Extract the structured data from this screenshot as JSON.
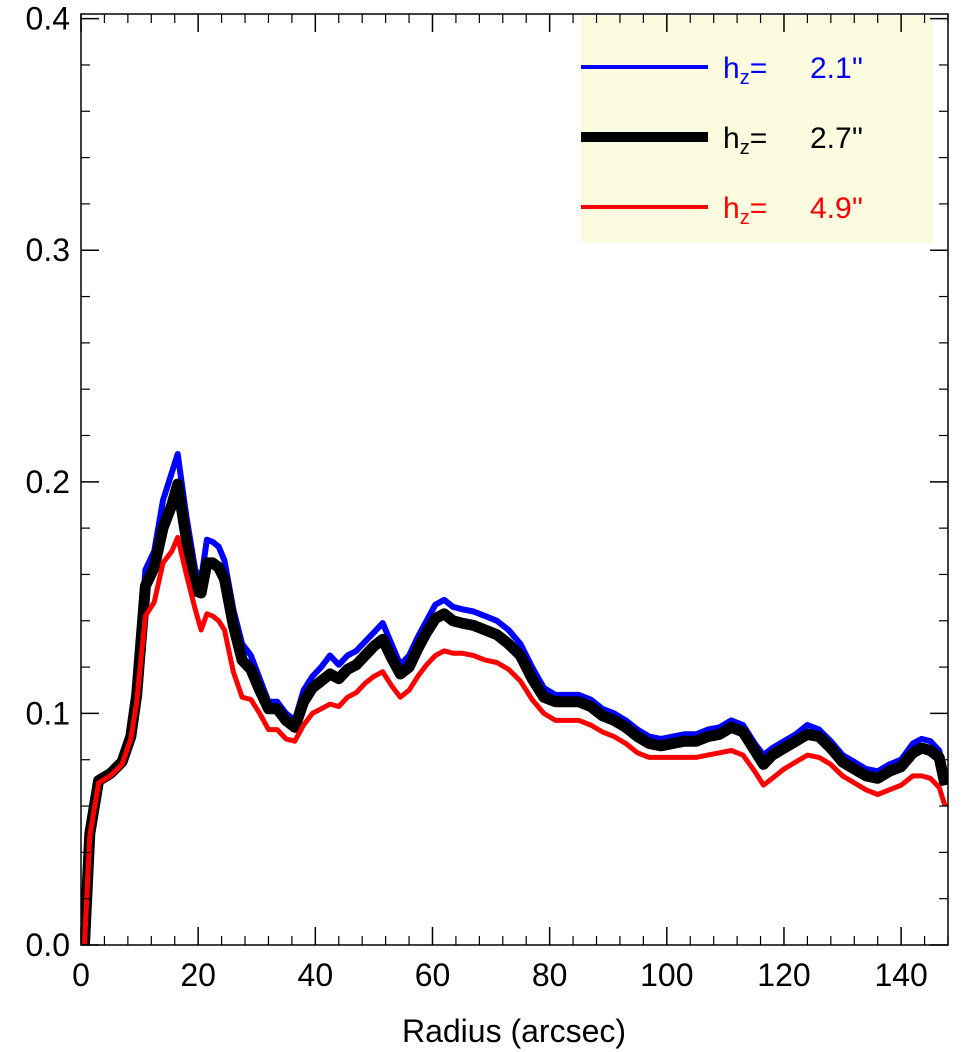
{
  "chart_data": {
    "type": "line",
    "title": "",
    "xlabel": "Radius (arcsec)",
    "ylabel": "",
    "xlim": [
      0,
      148
    ],
    "ylim": [
      0,
      0.402
    ],
    "grid": false,
    "legend_placement": "top-right",
    "legend_background": "#fbfbe0",
    "x_ticks": [
      0,
      20,
      40,
      60,
      80,
      100,
      120,
      140
    ],
    "x_tick_labels": [
      "0",
      "20",
      "40",
      "60",
      "80",
      "100",
      "120",
      "140"
    ],
    "y_ticks": [
      0,
      0.1,
      0.2,
      0.3,
      0.4
    ],
    "y_tick_labels": [
      "0.0",
      "0.1",
      "0.2",
      "0.3",
      "0.4"
    ],
    "x": [
      0.5,
      1.5,
      3,
      5,
      7,
      8.5,
      9.5,
      11,
      12.5,
      14,
      15.5,
      16.5,
      18,
      19.5,
      20.5,
      21.5,
      22.5,
      23.5,
      24.5,
      26,
      27.5,
      29,
      30.5,
      32,
      33.5,
      35,
      36.5,
      38,
      39.5,
      41,
      42.5,
      44,
      45.5,
      47,
      48.5,
      50,
      51.5,
      53,
      54.5,
      56,
      57.5,
      59,
      60.5,
      62,
      63.5,
      65,
      67,
      69,
      71,
      73,
      75,
      77,
      79,
      81,
      83,
      85,
      87,
      89,
      91,
      93,
      95,
      97,
      99,
      101,
      103,
      105,
      107,
      109,
      111,
      113,
      115,
      116.5,
      118,
      120,
      122,
      124,
      126,
      128,
      130,
      132,
      134,
      136,
      138,
      140,
      142,
      143.5,
      145,
      146.5,
      147.5
    ],
    "series": [
      {
        "name": "h_z= 2.1''",
        "color": "#0000ff",
        "line_width": 6,
        "values": [
          -0.005,
          0.05,
          0.072,
          0.075,
          0.08,
          0.093,
          0.112,
          0.162,
          0.17,
          0.192,
          0.204,
          0.212,
          0.185,
          0.162,
          0.158,
          0.175,
          0.174,
          0.172,
          0.166,
          0.145,
          0.13,
          0.125,
          0.115,
          0.105,
          0.105,
          0.1,
          0.097,
          0.11,
          0.116,
          0.12,
          0.125,
          0.121,
          0.125,
          0.127,
          0.131,
          0.135,
          0.139,
          0.13,
          0.121,
          0.125,
          0.133,
          0.14,
          0.147,
          0.149,
          0.146,
          0.145,
          0.144,
          0.142,
          0.14,
          0.136,
          0.13,
          0.12,
          0.111,
          0.108,
          0.108,
          0.108,
          0.106,
          0.102,
          0.1,
          0.097,
          0.093,
          0.09,
          0.089,
          0.09,
          0.091,
          0.091,
          0.093,
          0.094,
          0.097,
          0.095,
          0.087,
          0.082,
          0.085,
          0.088,
          0.091,
          0.095,
          0.093,
          0.088,
          0.082,
          0.079,
          0.076,
          0.075,
          0.078,
          0.08,
          0.087,
          0.089,
          0.088,
          0.084,
          0.072
        ]
      },
      {
        "name": "h_z= 2.7''",
        "color": "#000000",
        "line_width": 11,
        "values": [
          -0.005,
          0.048,
          0.071,
          0.074,
          0.079,
          0.09,
          0.108,
          0.155,
          0.163,
          0.18,
          0.19,
          0.199,
          0.175,
          0.153,
          0.152,
          0.165,
          0.165,
          0.163,
          0.158,
          0.138,
          0.123,
          0.119,
          0.11,
          0.102,
          0.102,
          0.097,
          0.094,
          0.105,
          0.111,
          0.114,
          0.117,
          0.115,
          0.119,
          0.121,
          0.125,
          0.129,
          0.132,
          0.124,
          0.117,
          0.12,
          0.128,
          0.135,
          0.141,
          0.143,
          0.14,
          0.139,
          0.138,
          0.136,
          0.134,
          0.13,
          0.125,
          0.115,
          0.107,
          0.105,
          0.105,
          0.105,
          0.103,
          0.099,
          0.097,
          0.094,
          0.09,
          0.087,
          0.086,
          0.087,
          0.088,
          0.088,
          0.09,
          0.091,
          0.094,
          0.092,
          0.084,
          0.078,
          0.082,
          0.085,
          0.088,
          0.091,
          0.09,
          0.085,
          0.079,
          0.076,
          0.073,
          0.072,
          0.075,
          0.077,
          0.083,
          0.085,
          0.084,
          0.081,
          0.069
        ]
      },
      {
        "name": "h_z= 4.9''",
        "color": "#ff0000",
        "line_width": 5,
        "values": [
          -0.005,
          0.047,
          0.07,
          0.073,
          0.078,
          0.089,
          0.105,
          0.142,
          0.148,
          0.165,
          0.17,
          0.176,
          0.16,
          0.145,
          0.136,
          0.143,
          0.142,
          0.14,
          0.136,
          0.118,
          0.107,
          0.106,
          0.1,
          0.093,
          0.093,
          0.089,
          0.088,
          0.095,
          0.1,
          0.102,
          0.104,
          0.103,
          0.107,
          0.109,
          0.113,
          0.116,
          0.118,
          0.112,
          0.107,
          0.11,
          0.116,
          0.121,
          0.125,
          0.127,
          0.126,
          0.126,
          0.125,
          0.123,
          0.122,
          0.119,
          0.114,
          0.106,
          0.1,
          0.097,
          0.097,
          0.097,
          0.095,
          0.092,
          0.09,
          0.087,
          0.083,
          0.081,
          0.081,
          0.081,
          0.081,
          0.081,
          0.082,
          0.083,
          0.084,
          0.082,
          0.075,
          0.069,
          0.072,
          0.076,
          0.079,
          0.082,
          0.081,
          0.078,
          0.073,
          0.07,
          0.067,
          0.065,
          0.067,
          0.069,
          0.073,
          0.073,
          0.072,
          0.068,
          0.06
        ]
      }
    ],
    "legend": [
      {
        "prefix": "h",
        "sub": "z",
        "suffix": "=",
        "value": "2.1''",
        "color": "#0000ff",
        "line_width": 4
      },
      {
        "prefix": "h",
        "sub": "z",
        "suffix": "=",
        "value": "2.7''",
        "color": "#000000",
        "line_width": 10
      },
      {
        "prefix": "h",
        "sub": "z",
        "suffix": "=",
        "value": "4.9''",
        "color": "#ff0000",
        "line_width": 4
      }
    ]
  }
}
